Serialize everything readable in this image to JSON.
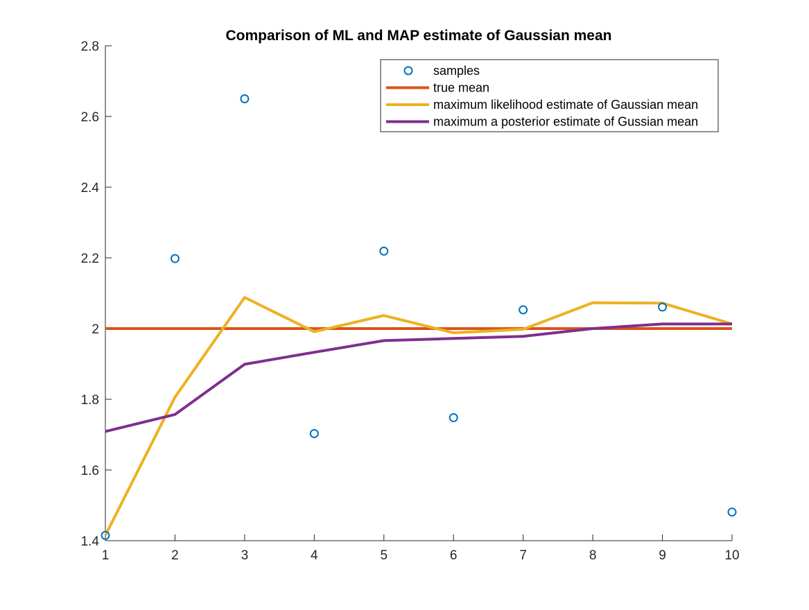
{
  "chart_data": {
    "type": "line",
    "title": "Comparison of ML and MAP estimate of Gaussian mean",
    "xlabel": "",
    "ylabel": "",
    "xlim": [
      1,
      10
    ],
    "ylim": [
      1.4,
      2.8
    ],
    "x": [
      1,
      2,
      3,
      4,
      5,
      6,
      7,
      8,
      9,
      10
    ],
    "xticks": [
      "1",
      "2",
      "3",
      "4",
      "5",
      "6",
      "7",
      "8",
      "9",
      "10"
    ],
    "yticks": [
      "1.4",
      "1.6",
      "1.8",
      "2",
      "2.2",
      "2.4",
      "2.6",
      "2.8"
    ],
    "ytick_values": [
      1.4,
      1.6,
      1.8,
      2.0,
      2.2,
      2.4,
      2.6,
      2.8
    ],
    "grid": false,
    "legend_position": "top-right",
    "series": [
      {
        "name": "samples",
        "style": "markers",
        "color": "#0072BD",
        "values": [
          1.415,
          2.198,
          2.65,
          1.703,
          2.219,
          1.748,
          2.053,
          null,
          2.061,
          1.481
        ]
      },
      {
        "name": "true mean",
        "style": "line",
        "color": "#D95319",
        "values": [
          2.0,
          2.0,
          2.0,
          2.0,
          2.0,
          2.0,
          2.0,
          2.0,
          2.0,
          2.0
        ]
      },
      {
        "name": "maximum likelihood estimate of Gaussian mean",
        "style": "line",
        "color": "#EDB120",
        "values": [
          1.415,
          1.806,
          2.088,
          1.991,
          2.037,
          1.988,
          1.998,
          2.073,
          2.072,
          2.013
        ]
      },
      {
        "name": "maximum a posterior estimate of Gussian mean",
        "style": "line",
        "color": "#7E2F8E",
        "values": [
          1.709,
          1.757,
          1.899,
          1.933,
          1.966,
          1.972,
          1.978,
          2.0,
          2.013,
          2.013
        ]
      }
    ]
  }
}
